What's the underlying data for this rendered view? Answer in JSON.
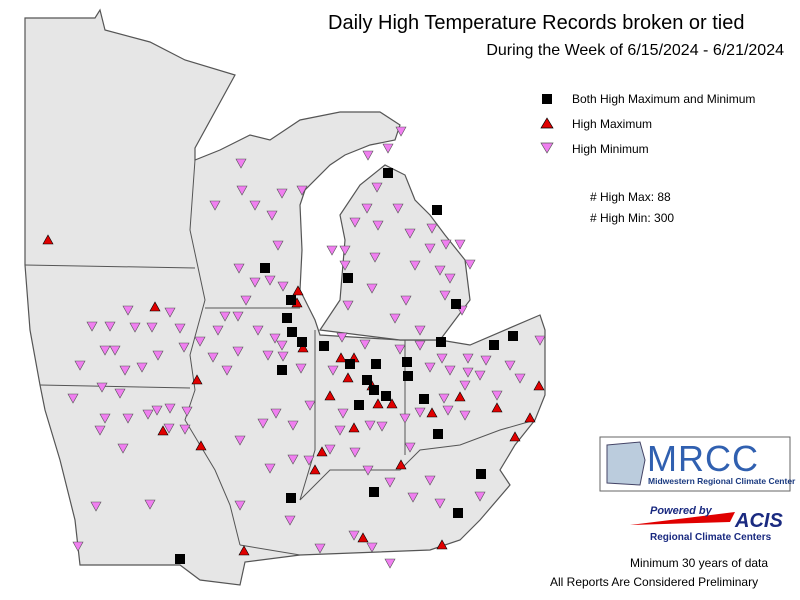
{
  "header": {
    "title": "Daily High Temperature Records broken or tied",
    "subtitle": "During the Week of 6/15/2024 - 6/21/2024"
  },
  "legend": [
    "Both High Maximum and Minimum",
    "High Maximum",
    "High Minimum"
  ],
  "counts": [
    "# High Max: 88",
    "# High Min: 300"
  ],
  "logo": {
    "name": "MRCC",
    "full": "Midwestern Regional Climate Center"
  },
  "acis": {
    "powered": "Powered by",
    "name": "ACIS",
    "sub": "Regional Climate Centers"
  },
  "footer": [
    "Minimum 30 years of data",
    "All Reports Are Considered Preliminary"
  ]
}
